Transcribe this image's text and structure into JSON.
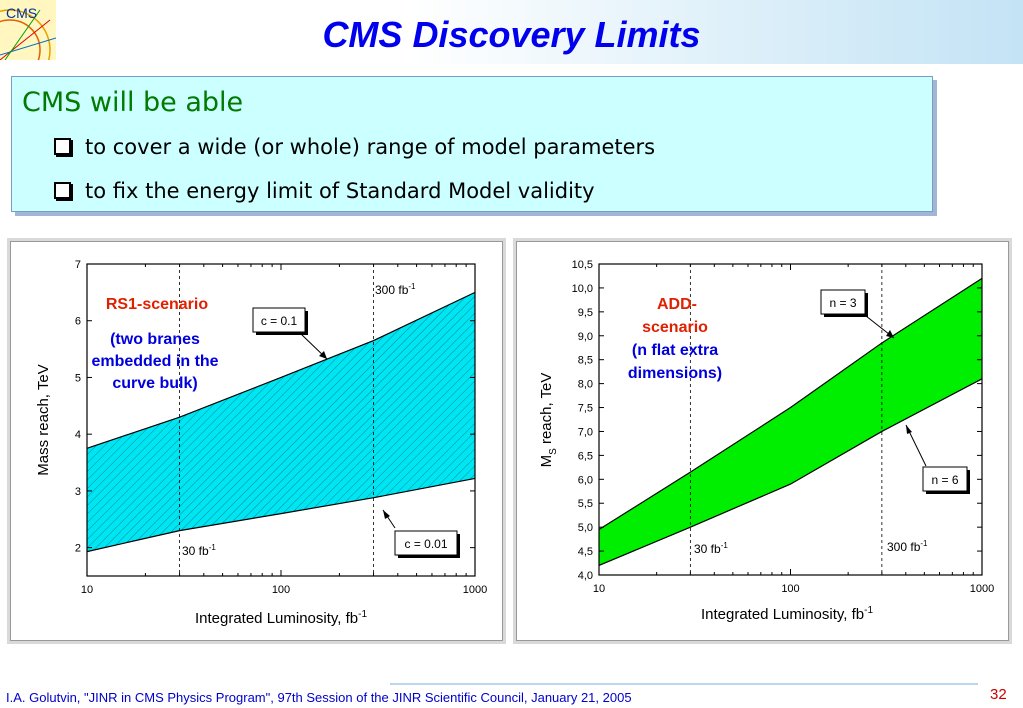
{
  "header": {
    "title": "CMS Discovery Limits",
    "logo_text": "CMS"
  },
  "intro": {
    "heading": "CMS will be able",
    "bullets": [
      "to cover a wide (or whole) range of model parameters",
      "to fix the energy limit of Standard Model validity"
    ]
  },
  "footer": {
    "citation": "I.A. Golutvin, \"JINR in CMS Physics Program\", 97th Session of the JINR Scientific Council, January 21, 2005",
    "page_number": "32"
  },
  "colors": {
    "title": "#0000ee",
    "left_band": "#00e5f2",
    "right_band": "#00ee00",
    "scenario_red": "#e02000",
    "scenario_blue": "#0000dd"
  },
  "chart_data": [
    {
      "type": "area",
      "x_scale": "log",
      "xlim": [
        10,
        1000
      ],
      "ylim": [
        1.5,
        7
      ],
      "xticks": [
        10,
        100,
        1000
      ],
      "xtick_labels": [
        "10",
        "100",
        "1000"
      ],
      "yticks": [
        2,
        3,
        4,
        5,
        6,
        7
      ],
      "ytick_labels": [
        "2",
        "3",
        "4",
        "5",
        "6",
        "7"
      ],
      "xlabel": "Integrated Luminosity, fb",
      "xlabel_sup": "-1",
      "ylabel": "Mass reach, TeV",
      "series": [
        {
          "name": "c = 0.1",
          "x": [
            10,
            30,
            100,
            300,
            1000
          ],
          "y": [
            3.75,
            4.3,
            5.0,
            5.65,
            6.5
          ]
        },
        {
          "name": "c = 0.01",
          "x": [
            10,
            30,
            100,
            300,
            1000
          ],
          "y": [
            1.93,
            2.3,
            2.6,
            2.88,
            3.22
          ]
        }
      ],
      "vlines": [
        {
          "x": 30,
          "label": "30 fb",
          "sup": "-1"
        },
        {
          "x": 300,
          "label": "300 fb",
          "sup": "-1"
        }
      ],
      "annotations": {
        "scenario": "RS1-scenario",
        "description": [
          "(two branes",
          "embedded in the",
          "curve bulk)"
        ]
      }
    },
    {
      "type": "area",
      "x_scale": "log",
      "xlim": [
        10,
        1000
      ],
      "ylim": [
        4.0,
        10.5
      ],
      "xticks": [
        10,
        100,
        1000
      ],
      "xtick_labels": [
        "10",
        "100",
        "1000"
      ],
      "yticks": [
        4.0,
        4.5,
        5.0,
        5.5,
        6.0,
        6.5,
        7.0,
        7.5,
        8.0,
        8.5,
        9.0,
        9.5,
        10.0,
        10.5
      ],
      "ytick_labels": [
        "4,0",
        "4,5",
        "5,0",
        "5,5",
        "6,0",
        "6,5",
        "7,0",
        "7,5",
        "8,0",
        "8,5",
        "9,0",
        "9,5",
        "10,0",
        "10,5"
      ],
      "xlabel": "Integrated Luminosity, fb",
      "xlabel_sup": "-1",
      "ylabel_main": "M",
      "ylabel_sub": "S",
      "ylabel_rest": " reach, TeV",
      "series": [
        {
          "name": "n = 3",
          "x": [
            10,
            30,
            100,
            300,
            1000
          ],
          "y": [
            4.95,
            6.15,
            7.5,
            8.85,
            10.2
          ]
        },
        {
          "name": "n = 6",
          "x": [
            10,
            30,
            100,
            300,
            1000
          ],
          "y": [
            4.2,
            5.0,
            5.9,
            7.0,
            8.1
          ]
        }
      ],
      "vlines": [
        {
          "x": 30,
          "label": "30 fb",
          "sup": "-1"
        },
        {
          "x": 300,
          "label": "300 fb",
          "sup": "-1"
        }
      ],
      "annotations": {
        "scenario_lines": [
          "ADD-",
          "scenario"
        ],
        "description": [
          "(n flat extra",
          "dimensions)"
        ]
      }
    }
  ]
}
